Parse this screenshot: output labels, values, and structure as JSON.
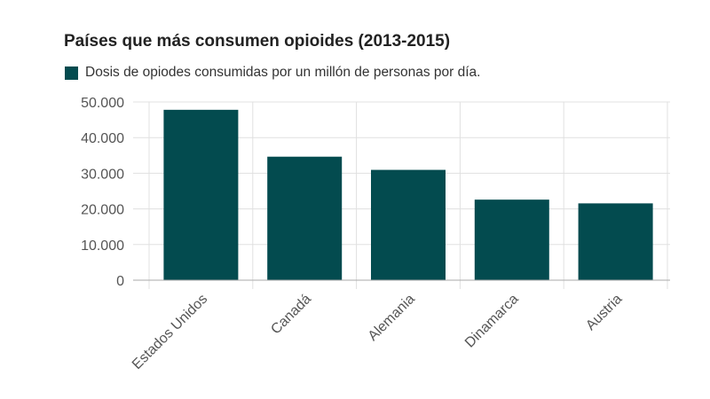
{
  "chart_data": {
    "type": "bar",
    "title": "Países que más consumen opioides (2013-2015)",
    "legend": [
      {
        "name": "Dosis de opiodes consumidas por un millón de personas por día.",
        "color": "#034b4f"
      }
    ],
    "legend_position": "top-left",
    "categories": [
      "Estados Unidos",
      "Canadá",
      "Alemania",
      "Dinamarca",
      "Austria"
    ],
    "series": [
      {
        "name": "Dosis de opiodes consumidas por un millón de personas por día.",
        "values": [
          47800,
          34650,
          30950,
          22600,
          21550
        ],
        "color": "#034b4f"
      }
    ],
    "xlabel": "",
    "ylabel": "",
    "ylim": [
      0,
      50000
    ],
    "yticks": [
      0,
      10000,
      20000,
      30000,
      40000,
      50000
    ],
    "ytick_labels": [
      "0",
      "10.000",
      "20.000",
      "30.000",
      "40.000",
      "50.000"
    ],
    "grid": true
  }
}
